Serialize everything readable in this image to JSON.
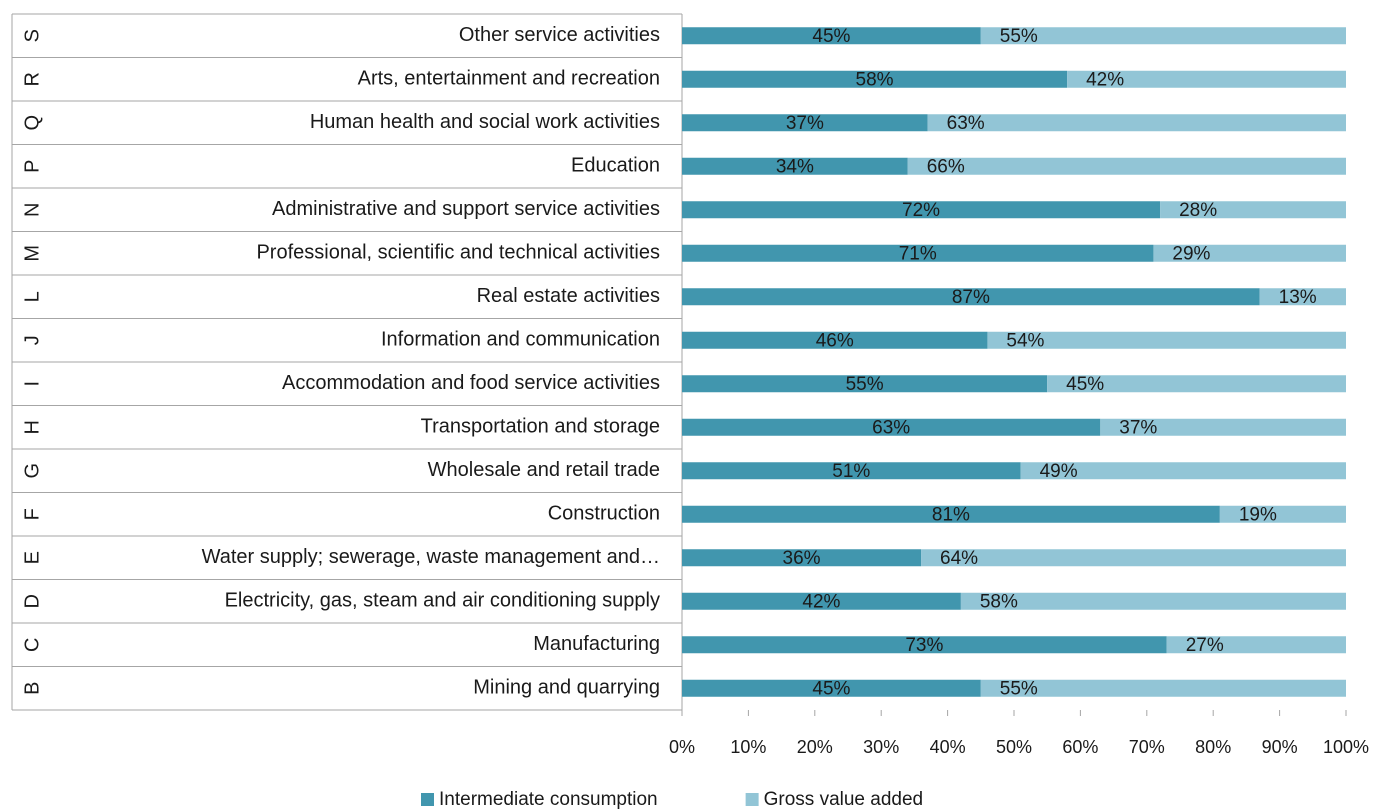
{
  "chart_data": {
    "type": "stacked_bar_horizontal",
    "category_codes": [
      "S",
      "R",
      "Q",
      "P",
      "N",
      "M",
      "L",
      "J",
      "I",
      "H",
      "G",
      "F",
      "E",
      "D",
      "C",
      "B"
    ],
    "categories": [
      "Other service activities",
      "Arts, entertainment and recreation",
      "Human health and social work activities",
      "Education",
      "Administrative and support service activities",
      "Professional, scientific and technical activities",
      "Real estate activities",
      "Information and communication",
      "Accommodation and food service activities",
      "Transportation and storage",
      "Wholesale and retail trade",
      "Construction",
      "Water supply; sewerage, waste management and…",
      "Electricity, gas, steam and air conditioning supply",
      "Manufacturing",
      "Mining and quarrying"
    ],
    "series": [
      {
        "name": "Intermediate consumption",
        "color": "#4196ae",
        "values": [
          45,
          58,
          37,
          34,
          72,
          71,
          87,
          46,
          55,
          63,
          51,
          81,
          36,
          42,
          73,
          45
        ],
        "value_labels": [
          "45%",
          "58%",
          "37%",
          "34%",
          "72%",
          "71%",
          "87%",
          "46%",
          "55%",
          "63%",
          "51%",
          "81%",
          "36%",
          "42%",
          "73%",
          "45%"
        ]
      },
      {
        "name": "Gross value added",
        "color": "#92c5d6",
        "values": [
          55,
          42,
          63,
          66,
          28,
          29,
          13,
          54,
          45,
          37,
          49,
          19,
          64,
          58,
          27,
          55
        ],
        "value_labels": [
          "55%",
          "42%",
          "63%",
          "66%",
          "28%",
          "29%",
          "13%",
          "54%",
          "45%",
          "37%",
          "49%",
          "19%",
          "64%",
          "58%",
          "27%",
          "55%"
        ]
      }
    ],
    "xlim": [
      0,
      100
    ],
    "xticks": [
      {
        "value": 0,
        "label": "0%"
      },
      {
        "value": 10,
        "label": "10%"
      },
      {
        "value": 20,
        "label": "20%"
      },
      {
        "value": 30,
        "label": "30%"
      },
      {
        "value": 40,
        "label": "40%"
      },
      {
        "value": 50,
        "label": "50%"
      },
      {
        "value": 60,
        "label": "60%"
      },
      {
        "value": 70,
        "label": "70%"
      },
      {
        "value": 80,
        "label": "80%"
      },
      {
        "value": 90,
        "label": "90%"
      },
      {
        "value": 100,
        "label": "100%"
      }
    ],
    "legend": "bottom"
  }
}
